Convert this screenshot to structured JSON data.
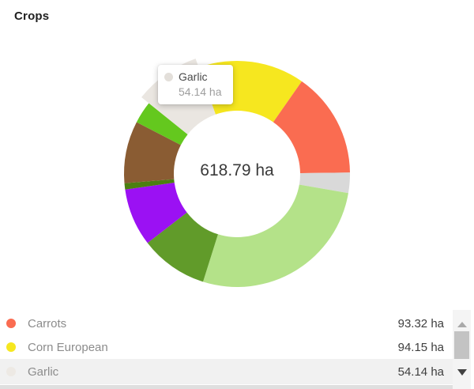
{
  "header": {
    "title": "Crops"
  },
  "chart_data": {
    "type": "pie",
    "subtype": "donut",
    "title": "Crops",
    "unit": "ha",
    "total": 618.79,
    "center_label": "618.79 ha",
    "legend_position": "bottom",
    "start_angle_deg": -19.78,
    "segments": [
      {
        "id": "corn-european",
        "label": "Corn European",
        "value": 94.15,
        "color": "#F6E71F",
        "exploded": false,
        "estimated": false
      },
      {
        "id": "carrots",
        "label": "Carrots",
        "value": 93.32,
        "color": "#FA6C51",
        "exploded": false,
        "estimated": false
      },
      {
        "id": "unlabeled-gray",
        "label": null,
        "value": 18.0,
        "color": "#D9D9D9",
        "exploded": false,
        "estimated": true
      },
      {
        "id": "unlabeled-light-green",
        "label": null,
        "value": 168.0,
        "color": "#B4E289",
        "exploded": false,
        "estimated": true
      },
      {
        "id": "unlabeled-olive-green",
        "label": null,
        "value": 60.0,
        "color": "#619B2A",
        "exploded": false,
        "estimated": true
      },
      {
        "id": "unlabeled-purple",
        "label": null,
        "value": 51.0,
        "color": "#9B11F3",
        "exploded": false,
        "estimated": true
      },
      {
        "id": "unlabeled-dark-green-sliver",
        "label": null,
        "value": 5.5,
        "color": "#4C7F10",
        "exploded": false,
        "estimated": true
      },
      {
        "id": "unlabeled-brown",
        "label": null,
        "value": 55.0,
        "color": "#8A5C33",
        "exploded": false,
        "estimated": true
      },
      {
        "id": "unlabeled-bright-green",
        "label": null,
        "value": 19.68,
        "color": "#64C81E",
        "exploded": false,
        "estimated": true
      },
      {
        "id": "garlic",
        "label": "Garlic",
        "value": 54.14,
        "color": "#EAE6E1",
        "exploded": true,
        "estimated": false
      }
    ]
  },
  "tooltip": {
    "label": "Garlic",
    "value": "54.14 ha",
    "dot_color": "#E3DFDA"
  },
  "legend": {
    "rows": [
      {
        "label": "Carrots",
        "value": "93.32 ha",
        "color": "#FA6C51",
        "highlighted": false
      },
      {
        "label": "Corn European",
        "value": "94.15 ha",
        "color": "#F6E71F",
        "highlighted": false
      },
      {
        "label": "Garlic",
        "value": "54.14 ha",
        "color": "#EDE9E4",
        "highlighted": true
      }
    ]
  },
  "colors": {
    "row_highlight": "#F1F1F1",
    "scrollbar_track": "#F4F4F4",
    "scrollbar_thumb": "#C3C3C3",
    "scroll_up_arrow": "#A9A9A9",
    "scroll_down_arrow": "#424242"
  }
}
